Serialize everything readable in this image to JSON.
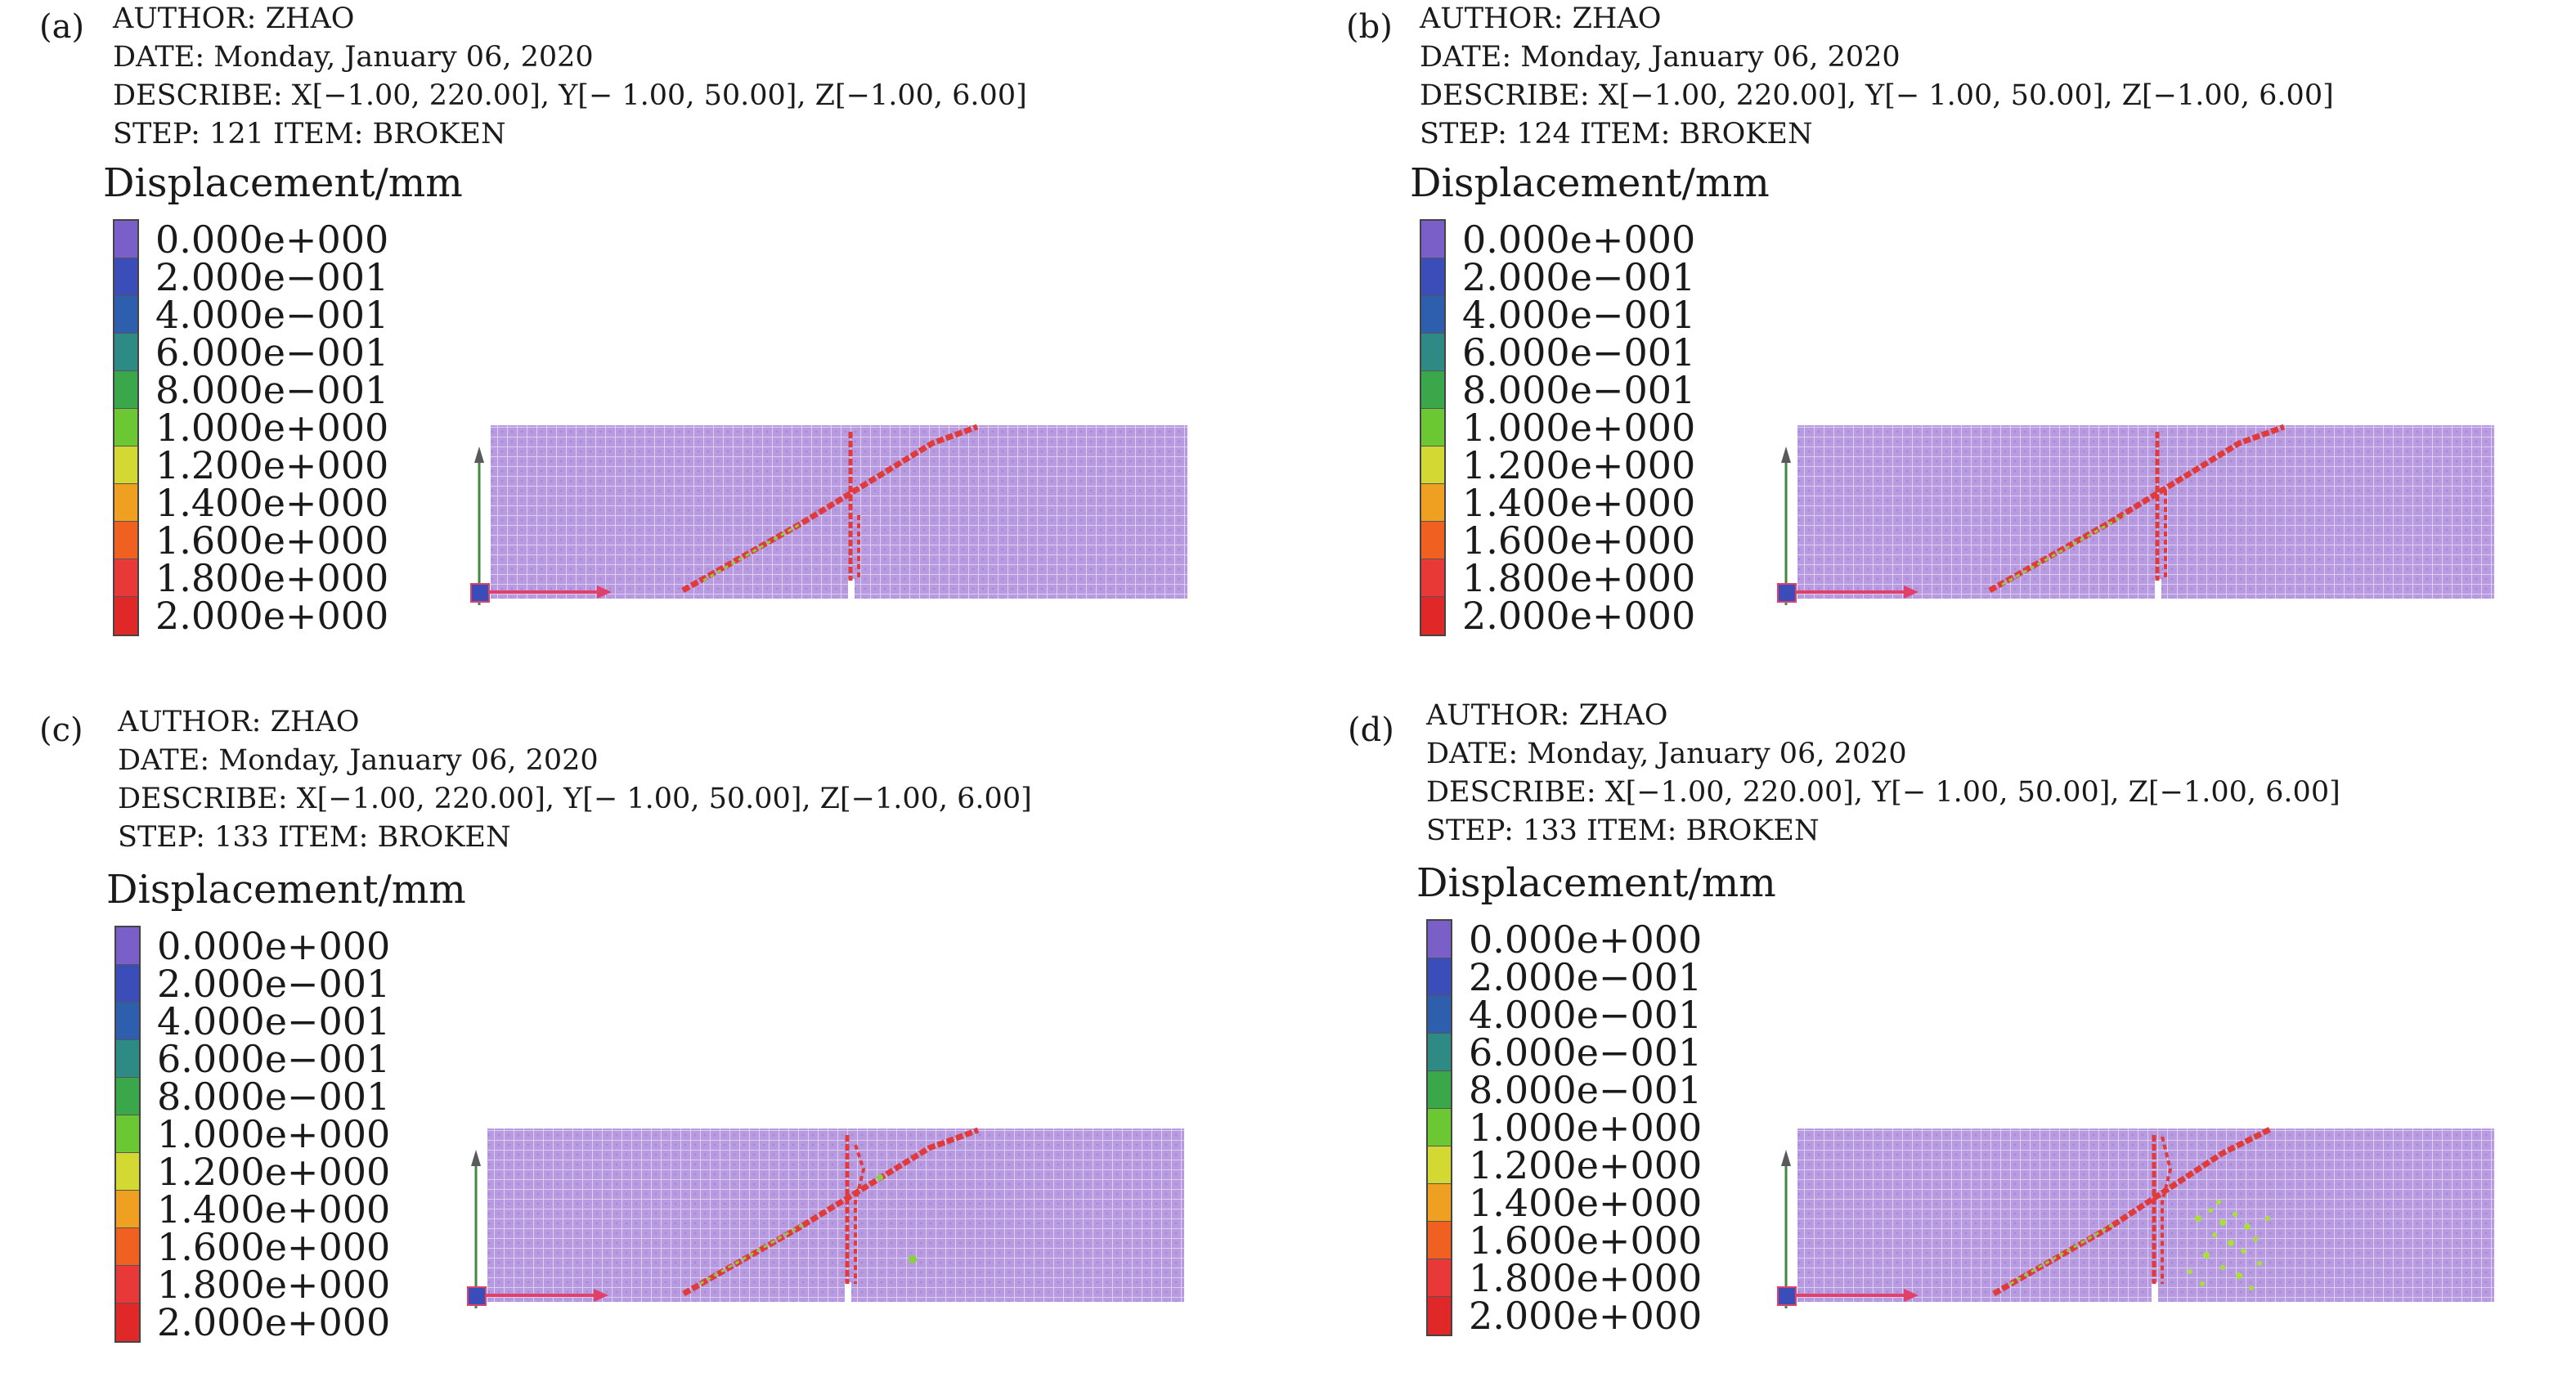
{
  "legend_colors": [
    "#7b5fc8",
    "#3a4db8",
    "#2e5fae",
    "#2e8a85",
    "#3aa84a",
    "#6cc832",
    "#d4d832",
    "#f0a020",
    "#f06020",
    "#e83838",
    "#e02828"
  ],
  "legend_values": [
    "0.000e+000",
    "2.000e−001",
    "4.000e−001",
    "6.000e−001",
    "8.000e−001",
    "1.000e+000",
    "1.200e+000",
    "1.400e+000",
    "1.600e+000",
    "1.800e+000",
    "2.000e+000"
  ],
  "panels": [
    {
      "letter": "(a)",
      "author": "AUTHOR: ZHAO",
      "date": "DATE: Monday, January 06, 2020",
      "describe": "DESCRIBE: X[−1.00, 220.00], Y[− 1.00, 50.00], Z[−1.00, 6.00]",
      "step": "STEP: 121 ITEM: BROKEN",
      "legend_title": "Displacement/mm"
    },
    {
      "letter": "(b)",
      "author": "AUTHOR: ZHAO",
      "date": "DATE: Monday, January 06, 2020",
      "describe": "DESCRIBE: X[−1.00, 220.00], Y[− 1.00, 50.00], Z[−1.00, 6.00]",
      "step": "STEP: 124 ITEM: BROKEN",
      "legend_title": "Displacement/mm"
    },
    {
      "letter": "(c)",
      "author": "AUTHOR: ZHAO",
      "date": "DATE: Monday, January 06, 2020",
      "describe": "DESCRIBE: X[−1.00, 220.00], Y[− 1.00, 50.00], Z[−1.00, 6.00]",
      "step": "STEP: 133 ITEM: BROKEN",
      "legend_title": "Displacement/mm"
    },
    {
      "letter": "(d)",
      "author": "AUTHOR: ZHAO",
      "date": "DATE: Monday, January 06, 2020",
      "describe": "DESCRIBE: X[−1.00, 220.00], Y[− 1.00, 50.00], Z[−1.00, 6.00]",
      "step": "STEP: 133 ITEM: BROKEN",
      "legend_title": "Displacement/mm"
    }
  ]
}
